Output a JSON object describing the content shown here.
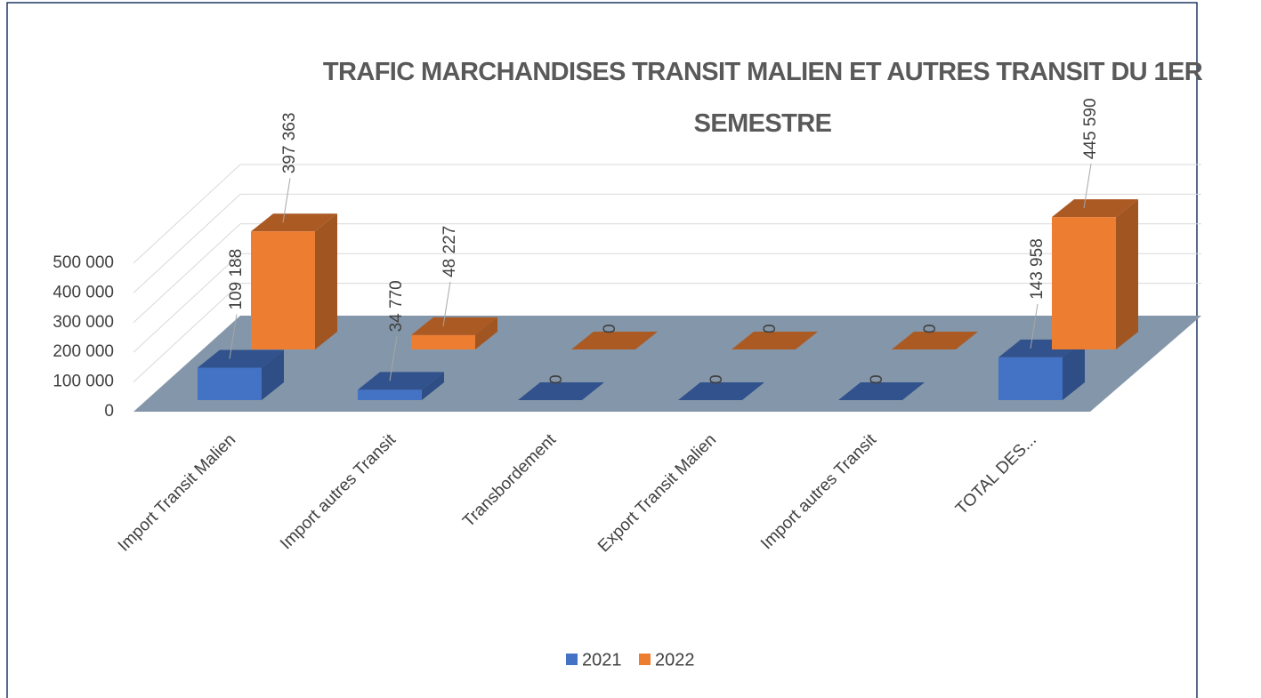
{
  "chart_data": {
    "type": "bar3d",
    "title": "TRAFIC MARCHANDISES TRANSIT MALIEN ET AUTRES TRANSIT DU 1ER SEMESTRE",
    "categories": [
      "Import Transit Malien",
      "Import autres Transit",
      "Transbordement",
      "Export Transit Malien",
      "Import autres Transit",
      "TOTAL DES..."
    ],
    "series": [
      {
        "name": "2021",
        "color": "#4472c4",
        "values": [
          109188,
          34770,
          0,
          0,
          0,
          143958
        ],
        "value_labels": [
          "109 188",
          "34 770",
          "0",
          "0",
          "0",
          "143 958"
        ]
      },
      {
        "name": "2022",
        "color": "#ed7d31",
        "values": [
          397363,
          48227,
          0,
          0,
          0,
          445590
        ],
        "value_labels": [
          "397 363",
          "48 227",
          "0",
          "0",
          "0",
          "445 590"
        ]
      }
    ],
    "ylim": [
      0,
      500000
    ],
    "yticks": [
      0,
      {
        "value": 100000,
        "label": "100 000"
      },
      {
        "value": 200000,
        "label": "200 000"
      },
      {
        "value": 300000,
        "label": "300 000"
      },
      {
        "value": 400000,
        "label": "400 000"
      },
      {
        "value": 500000,
        "label": "500 000"
      }
    ],
    "grid": true,
    "legend": "bottom"
  }
}
